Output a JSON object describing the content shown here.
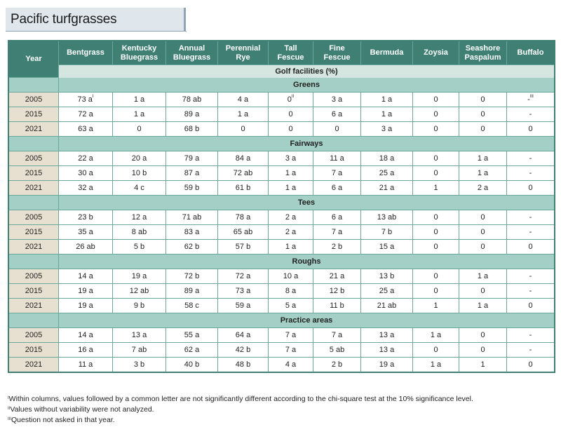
{
  "title": "Pacific turfgrasses",
  "header": {
    "year_label": "Year",
    "columns": [
      [
        "Bentgrass",
        ""
      ],
      [
        "Kentucky",
        "Bluegrass"
      ],
      [
        "Annual",
        "Bluegrass"
      ],
      [
        "Perennial",
        "Rye"
      ],
      [
        "Tall",
        "Fescue"
      ],
      [
        "Fine",
        "Fescue"
      ],
      [
        "Bermuda",
        ""
      ],
      [
        "Zoysia",
        ""
      ],
      [
        "Seashore",
        "Paspalum"
      ],
      [
        "Buffalo",
        ""
      ]
    ],
    "subheader": "Golf facilities (%)"
  },
  "sections": [
    {
      "name": "Greens",
      "rows": [
        {
          "year": "2005",
          "cells": [
            [
              "73 a",
              "I"
            ],
            [
              "1 a",
              ""
            ],
            [
              "78 ab",
              ""
            ],
            [
              "4 a",
              ""
            ],
            [
              "0",
              "II"
            ],
            [
              "3 a",
              ""
            ],
            [
              "1 a",
              ""
            ],
            [
              "0",
              ""
            ],
            [
              "0",
              ""
            ],
            [
              "-",
              "III"
            ]
          ]
        },
        {
          "year": "2015",
          "cells": [
            [
              "72 a",
              ""
            ],
            [
              "1 a",
              ""
            ],
            [
              "89 a",
              ""
            ],
            [
              "1 a",
              ""
            ],
            [
              "0",
              ""
            ],
            [
              "6 a",
              ""
            ],
            [
              "1 a",
              ""
            ],
            [
              "0",
              ""
            ],
            [
              "0",
              ""
            ],
            [
              "-",
              ""
            ]
          ]
        },
        {
          "year": "2021",
          "cells": [
            [
              "63 a",
              ""
            ],
            [
              "0",
              ""
            ],
            [
              "68 b",
              ""
            ],
            [
              "0",
              ""
            ],
            [
              "0",
              ""
            ],
            [
              "0",
              ""
            ],
            [
              "3 a",
              ""
            ],
            [
              "0",
              ""
            ],
            [
              "0",
              ""
            ],
            [
              "0",
              ""
            ]
          ]
        }
      ]
    },
    {
      "name": "Fairways",
      "rows": [
        {
          "year": "2005",
          "cells": [
            [
              "22 a",
              ""
            ],
            [
              "20 a",
              ""
            ],
            [
              "79 a",
              ""
            ],
            [
              "84 a",
              ""
            ],
            [
              "3 a",
              ""
            ],
            [
              "11 a",
              ""
            ],
            [
              "18 a",
              ""
            ],
            [
              "0",
              ""
            ],
            [
              "1 a",
              ""
            ],
            [
              "-",
              ""
            ]
          ]
        },
        {
          "year": "2015",
          "cells": [
            [
              "30 a",
              ""
            ],
            [
              "10 b",
              ""
            ],
            [
              "87 a",
              ""
            ],
            [
              "72 ab",
              ""
            ],
            [
              "1 a",
              ""
            ],
            [
              "7 a",
              ""
            ],
            [
              "25 a",
              ""
            ],
            [
              "0",
              ""
            ],
            [
              "1 a",
              ""
            ],
            [
              "-",
              ""
            ]
          ]
        },
        {
          "year": "2021",
          "cells": [
            [
              "32 a",
              ""
            ],
            [
              "4 c",
              ""
            ],
            [
              "59 b",
              ""
            ],
            [
              "61 b",
              ""
            ],
            [
              "1 a",
              ""
            ],
            [
              "6 a",
              ""
            ],
            [
              "21 a",
              ""
            ],
            [
              "1",
              ""
            ],
            [
              "2 a",
              ""
            ],
            [
              "0",
              ""
            ]
          ]
        }
      ]
    },
    {
      "name": "Tees",
      "rows": [
        {
          "year": "2005",
          "cells": [
            [
              "23 b",
              ""
            ],
            [
              "12 a",
              ""
            ],
            [
              "71 ab",
              ""
            ],
            [
              "78 a",
              ""
            ],
            [
              "2 a",
              ""
            ],
            [
              "6 a",
              ""
            ],
            [
              "13 ab",
              ""
            ],
            [
              "0",
              ""
            ],
            [
              "0",
              ""
            ],
            [
              "-",
              ""
            ]
          ]
        },
        {
          "year": "2015",
          "cells": [
            [
              "35 a",
              ""
            ],
            [
              "8 ab",
              ""
            ],
            [
              "83 a",
              ""
            ],
            [
              "65 ab",
              ""
            ],
            [
              "2 a",
              ""
            ],
            [
              "7 a",
              ""
            ],
            [
              "7 b",
              ""
            ],
            [
              "0",
              ""
            ],
            [
              "0",
              ""
            ],
            [
              "-",
              ""
            ]
          ]
        },
        {
          "year": "2021",
          "cells": [
            [
              "26 ab",
              ""
            ],
            [
              "5 b",
              ""
            ],
            [
              "62 b",
              ""
            ],
            [
              "57 b",
              ""
            ],
            [
              "1 a",
              ""
            ],
            [
              "2 b",
              ""
            ],
            [
              "15 a",
              ""
            ],
            [
              "0",
              ""
            ],
            [
              "0",
              ""
            ],
            [
              "0",
              ""
            ]
          ]
        }
      ]
    },
    {
      "name": "Roughs",
      "rows": [
        {
          "year": "2005",
          "cells": [
            [
              "14 a",
              ""
            ],
            [
              "19 a",
              ""
            ],
            [
              "72 b",
              ""
            ],
            [
              "72 a",
              ""
            ],
            [
              "10 a",
              ""
            ],
            [
              "21 a",
              ""
            ],
            [
              "13 b",
              ""
            ],
            [
              "0",
              ""
            ],
            [
              "1 a",
              ""
            ],
            [
              "-",
              ""
            ]
          ]
        },
        {
          "year": "2015",
          "cells": [
            [
              "19 a",
              ""
            ],
            [
              "12 ab",
              ""
            ],
            [
              "89 a",
              ""
            ],
            [
              "73 a",
              ""
            ],
            [
              "8 a",
              ""
            ],
            [
              "12 b",
              ""
            ],
            [
              "25 a",
              ""
            ],
            [
              "0",
              ""
            ],
            [
              "0",
              ""
            ],
            [
              "-",
              ""
            ]
          ]
        },
        {
          "year": "2021",
          "cells": [
            [
              "19 a",
              ""
            ],
            [
              "9 b",
              ""
            ],
            [
              "58 c",
              ""
            ],
            [
              "59 a",
              ""
            ],
            [
              "5 a",
              ""
            ],
            [
              "11 b",
              ""
            ],
            [
              "21 ab",
              ""
            ],
            [
              "1",
              ""
            ],
            [
              "1 a",
              ""
            ],
            [
              "0",
              ""
            ]
          ]
        }
      ]
    },
    {
      "name": "Practice areas",
      "rows": [
        {
          "year": "2005",
          "cells": [
            [
              "14 a",
              ""
            ],
            [
              "13 a",
              ""
            ],
            [
              "55 a",
              ""
            ],
            [
              "64 a",
              ""
            ],
            [
              "7 a",
              ""
            ],
            [
              "7 a",
              ""
            ],
            [
              "13 a",
              ""
            ],
            [
              "1 a",
              ""
            ],
            [
              "0",
              ""
            ],
            [
              "-",
              ""
            ]
          ]
        },
        {
          "year": "2015",
          "cells": [
            [
              "16 a",
              ""
            ],
            [
              "7 ab",
              ""
            ],
            [
              "62 a",
              ""
            ],
            [
              "42 b",
              ""
            ],
            [
              "7 a",
              ""
            ],
            [
              "5 ab",
              ""
            ],
            [
              "13 a",
              ""
            ],
            [
              "0",
              ""
            ],
            [
              "0",
              ""
            ],
            [
              "-",
              ""
            ]
          ]
        },
        {
          "year": "2021",
          "cells": [
            [
              "11 a",
              ""
            ],
            [
              "3 b",
              ""
            ],
            [
              "40 b",
              ""
            ],
            [
              "48 b",
              ""
            ],
            [
              "4 a",
              ""
            ],
            [
              "2 b",
              ""
            ],
            [
              "19 a",
              ""
            ],
            [
              "1 a",
              ""
            ],
            [
              "1",
              ""
            ],
            [
              "0",
              ""
            ]
          ]
        }
      ]
    }
  ],
  "notes": [
    {
      "mark": "I",
      "text": "Within columns, values followed by a common letter are not significantly different according to the chi-square test at the 10% significance level."
    },
    {
      "mark": "II",
      "text": "Values without variability were not analyzed."
    },
    {
      "mark": "III",
      "text": "Question not asked in that year."
    }
  ],
  "colors": {
    "header": "#3f7f74",
    "section": "#a4cfc6",
    "year_cell": "#e7dfcf",
    "title_bg": "#dfe6ec"
  }
}
